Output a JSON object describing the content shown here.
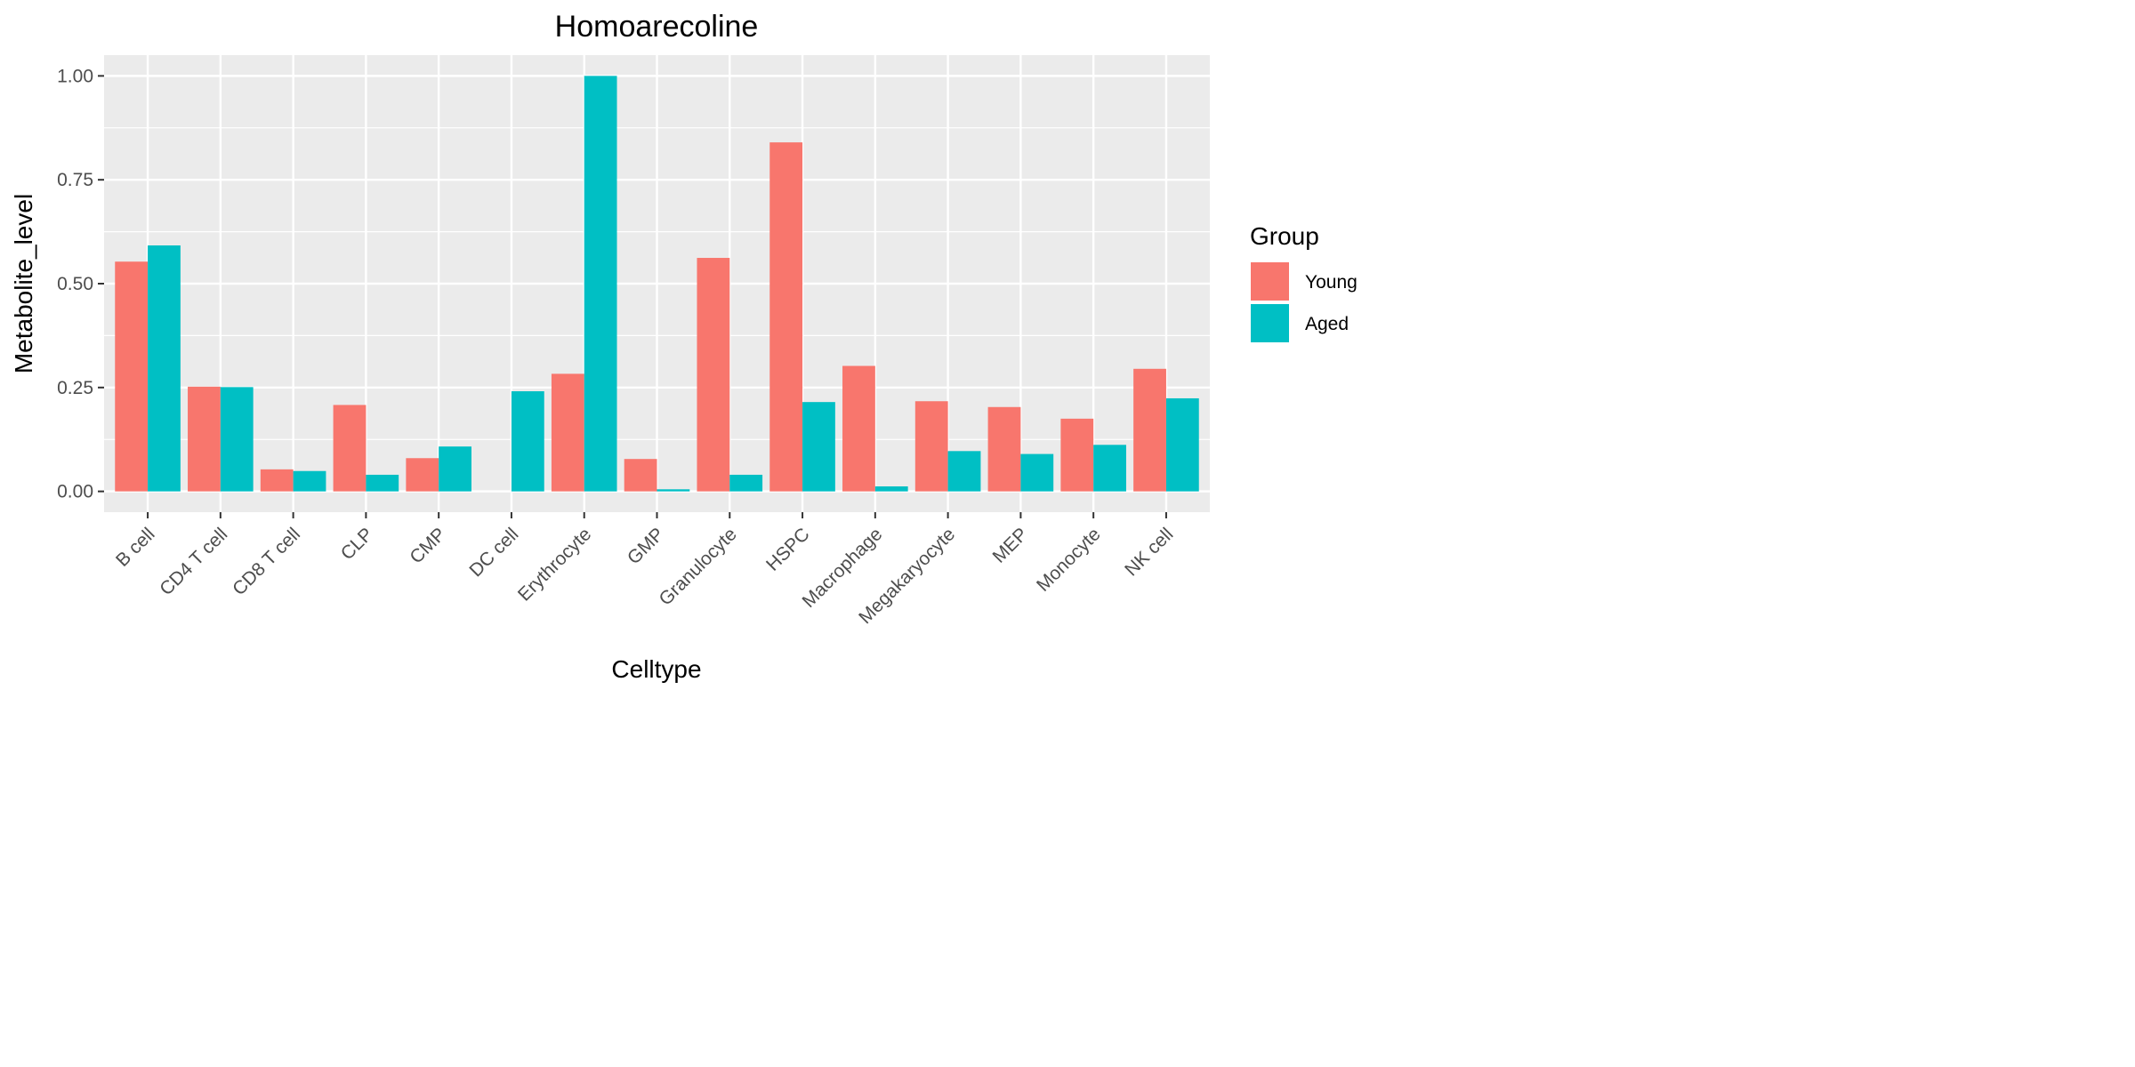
{
  "chart_data": {
    "type": "bar",
    "title": "Homoarecoline",
    "xlabel": "Celltype",
    "ylabel": "Metabolite_level",
    "ylim": [
      -0.05,
      1.05
    ],
    "yticks": [
      0.0,
      0.25,
      0.5,
      0.75,
      1.0
    ],
    "ytick_labels": [
      "0.00",
      "0.25",
      "0.50",
      "0.75",
      "1.00"
    ],
    "grid": true,
    "legend": {
      "title": "Group",
      "position": "right"
    },
    "categories": [
      "B cell",
      "CD4 T cell",
      "CD8 T cell",
      "CLP",
      "CMP",
      "DC cell",
      "Erythrocyte",
      "GMP",
      "Granulocyte",
      "HSPC",
      "Macrophage",
      "Megakaryocyte",
      "MEP",
      "Monocyte",
      "NK cell"
    ],
    "series": [
      {
        "name": "Young",
        "color": "#F8766D",
        "values": [
          0.553,
          0.252,
          0.053,
          0.208,
          0.08,
          0.0,
          0.283,
          0.078,
          0.562,
          0.84,
          0.302,
          0.217,
          0.203,
          0.175,
          0.295
        ]
      },
      {
        "name": "Aged",
        "color": "#00BFC4",
        "values": [
          0.592,
          0.251,
          0.049,
          0.04,
          0.108,
          0.241,
          1.0,
          0.005,
          0.04,
          0.215,
          0.012,
          0.097,
          0.09,
          0.112,
          0.224
        ]
      }
    ]
  }
}
